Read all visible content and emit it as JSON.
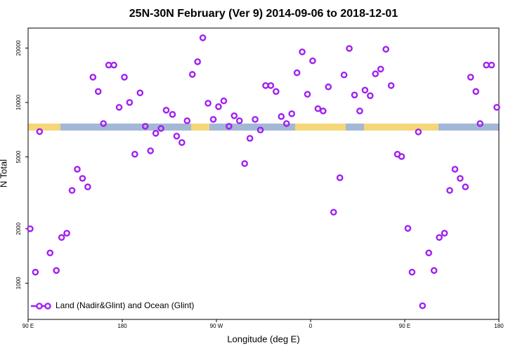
{
  "chart_data": {
    "type": "scatter",
    "title": "25N-30N February (Ver 9)   2014-09-06 to 2018-12-01",
    "xlabel": "Longitude (deg E)",
    "ylabel": "N Total",
    "xlim": [
      90,
      540
    ],
    "xticks": [
      {
        "value": 90,
        "label": "90 E"
      },
      180,
      {
        "value": 270,
        "label": "90 W"
      },
      {
        "value": 360,
        "label": "0"
      },
      {
        "value": 450,
        "label": "90 E"
      },
      {
        "value": 540,
        "label": "180"
      }
    ],
    "ylim": [
      630,
      25800
    ],
    "yticks": [
      1000,
      2000,
      5000,
      10000,
      20000
    ],
    "ylog": true,
    "legend": "bottom-left",
    "x": [
      92,
      97,
      101,
      111,
      117,
      122,
      127,
      132,
      137,
      142,
      147,
      152,
      157,
      162,
      167,
      172,
      177,
      182,
      187,
      192,
      197,
      202,
      207,
      212,
      217,
      222,
      228,
      232,
      237,
      242,
      247,
      252,
      257,
      262,
      267,
      272,
      277,
      282,
      287,
      292,
      297,
      302,
      307,
      312,
      317,
      322,
      327,
      332,
      337,
      342,
      347,
      352,
      357,
      362,
      367,
      372,
      377,
      382,
      388,
      392,
      397,
      402,
      407,
      412,
      417,
      422,
      427,
      432,
      437,
      443,
      447,
      453,
      457,
      463,
      467,
      473,
      478,
      483,
      488,
      493,
      498,
      503,
      508,
      513,
      518,
      522,
      528,
      533,
      538
    ],
    "series": [
      {
        "name": "Land (Nadir&Glint) and Ocean (Glint)",
        "color": "#a020f0",
        "values": [
          2000,
          1150,
          6900,
          1470,
          1175,
          1790,
          1890,
          3260,
          4270,
          3800,
          3410,
          13800,
          11500,
          7640,
          16100,
          16100,
          9400,
          13800,
          10000,
          5170,
          11300,
          7380,
          5400,
          6750,
          7180,
          9060,
          8590,
          6510,
          6000,
          7920,
          14300,
          16800,
          22800,
          9900,
          8060,
          9480,
          10200,
          7380,
          8440,
          7920,
          4590,
          6330,
          8060,
          7040,
          12400,
          12400,
          11500,
          8360,
          7640,
          8660,
          14600,
          19050,
          11100,
          17000,
          9240,
          8970,
          12200,
          2470,
          3830,
          14200,
          19900,
          11000,
          8970,
          11700,
          10900,
          14400,
          15300,
          19700,
          12400,
          5170,
          5020,
          2010,
          1150,
          6870,
          750,
          1470,
          1175,
          1790,
          1890,
          3260,
          4270,
          3800,
          3410,
          13800,
          11500,
          7640,
          16100,
          16100,
          9400
        ]
      }
    ]
  }
}
